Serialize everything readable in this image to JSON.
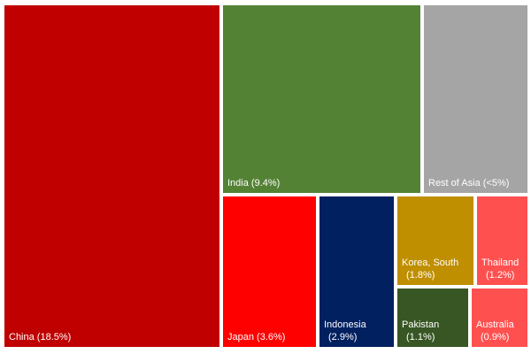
{
  "chart_data": {
    "type": "treemap",
    "tiles": [
      {
        "id": "china",
        "label_lines": [
          "China (18.5%)"
        ],
        "name": "China",
        "value": 18.5,
        "color": "#C00000"
      },
      {
        "id": "india",
        "label_lines": [
          "India (9.4%)"
        ],
        "name": "India",
        "value": 9.4,
        "color": "#548235"
      },
      {
        "id": "rest-asia",
        "label_lines": [
          "Rest of Asia (<5%)"
        ],
        "name": "Rest of Asia",
        "value": null,
        "value_label": "<5%",
        "color": "#A5A5A5"
      },
      {
        "id": "japan",
        "label_lines": [
          "Japan (3.6%)"
        ],
        "name": "Japan",
        "value": 3.6,
        "color": "#FF0000"
      },
      {
        "id": "indonesia",
        "label_lines": [
          "Indonesia",
          "(2.9%)"
        ],
        "name": "Indonesia",
        "value": 2.9,
        "color": "#002060"
      },
      {
        "id": "korea",
        "label_lines": [
          "Korea, South",
          "(1.8%)"
        ],
        "name": "Korea, South",
        "value": 1.8,
        "color": "#BF8F00"
      },
      {
        "id": "thailand",
        "label_lines": [
          "Thailand",
          "(1.2%)"
        ],
        "name": "Thailand",
        "value": 1.2,
        "color": "#FF5050"
      },
      {
        "id": "pakistan",
        "label_lines": [
          "Pakistan",
          "(1.1%)"
        ],
        "name": "Pakistan",
        "value": 1.1,
        "color": "#375623"
      },
      {
        "id": "australia",
        "label_lines": [
          "Australia",
          "(0.9%)"
        ],
        "name": "Australia",
        "value": 0.9,
        "color": "#FF5050"
      }
    ]
  }
}
